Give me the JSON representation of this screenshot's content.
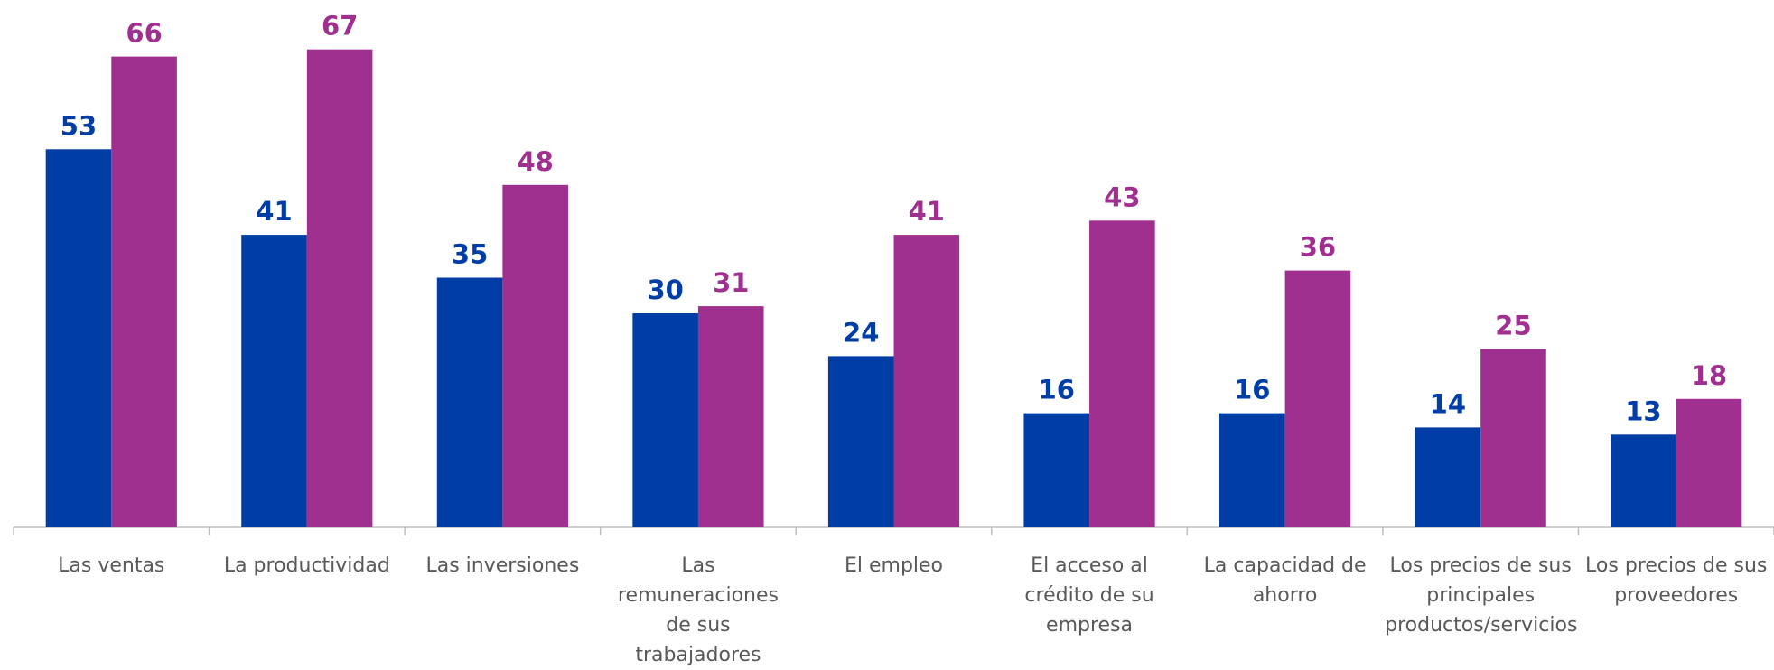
{
  "chart_data": {
    "type": "bar",
    "categories": [
      "Las ventas",
      "La productividad",
      "Las inversiones",
      "Las remuneraciones de sus trabajadores",
      "El empleo",
      "El acceso al crédito de su empresa",
      "La capacidad de ahorro",
      "Los precios de sus principales productos/servicios",
      "Los precios de sus proveedores"
    ],
    "series": [
      {
        "color": "#003da5",
        "values": [
          53,
          41,
          35,
          30,
          24,
          16,
          16,
          14,
          13
        ]
      },
      {
        "color": "#a03090",
        "values": [
          66,
          67,
          48,
          31,
          41,
          43,
          36,
          25,
          18
        ]
      }
    ],
    "ylim": [
      0,
      70
    ]
  }
}
